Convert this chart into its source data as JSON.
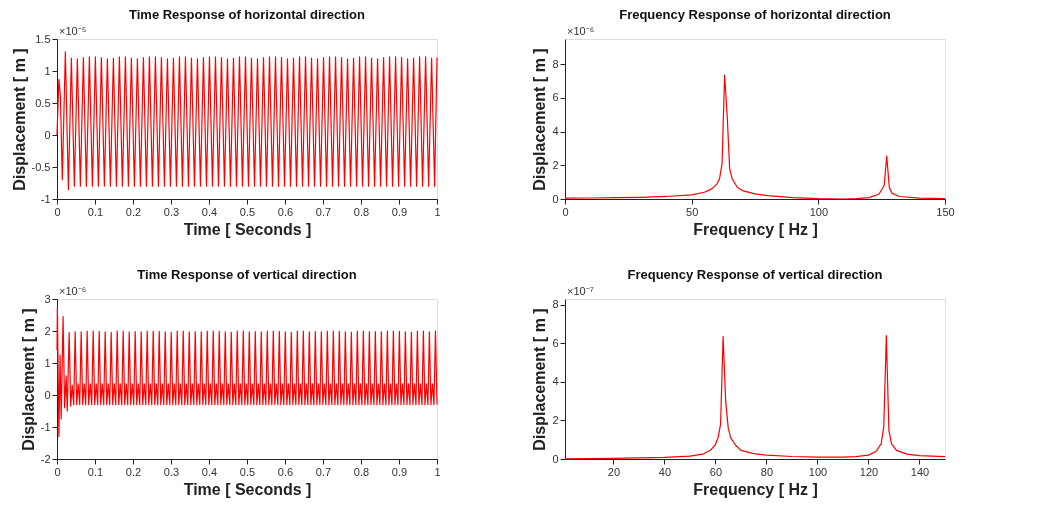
{
  "chart_data": [
    {
      "type": "line",
      "title": "Time Response of horizontal direction",
      "xlabel": "Time [ Seconds ]",
      "ylabel": "Displacement [ m ]",
      "annotations": [
        "×10⁻⁵"
      ],
      "xlim": [
        0,
        1
      ],
      "xticks": [
        0,
        0.1,
        0.2,
        0.3,
        0.4,
        0.5,
        0.6,
        0.7,
        0.8,
        0.9,
        1
      ],
      "ylim": [
        -1,
        1.5
      ],
      "yticks": [
        -1,
        -0.5,
        0,
        0.5,
        1,
        1.5
      ],
      "grid": false,
      "line_style": "solid",
      "series": [
        {
          "color": "#ff0000",
          "x": [
            0,
            0.005,
            0.009,
            0.014,
            0.022,
            0.03,
            0.0378,
            0.0457,
            0.0536,
            0.0615,
            0.0694,
            0.0773,
            0.0852,
            0.0931,
            0.101,
            0.1089,
            0.1168,
            0.1247,
            0.1326,
            0.1405,
            0.1484,
            0.1563,
            0.1642,
            0.1721,
            0.18,
            0.1879,
            0.1958,
            0.2037,
            0.2116,
            0.2195,
            0.2274,
            0.2353,
            0.2432,
            0.2511,
            0.259,
            0.2669,
            0.2748,
            0.2827,
            0.2906,
            0.2985,
            0.3064,
            0.3143,
            0.3222,
            0.3301,
            0.338,
            0.3459,
            0.3538,
            0.3617,
            0.3696,
            0.3775,
            0.3854,
            0.3933,
            0.4012,
            0.4091,
            0.417,
            0.4249,
            0.4328,
            0.4407,
            0.4486,
            0.4565,
            0.4644,
            0.4723,
            0.4802,
            0.4881,
            0.496,
            0.5039,
            0.5118,
            0.5197,
            0.5276,
            0.5355,
            0.5434,
            0.5513,
            0.5592,
            0.5671,
            0.575,
            0.5829,
            0.5908,
            0.5987,
            0.6066,
            0.6145,
            0.6224,
            0.6303,
            0.6382,
            0.6461,
            0.654,
            0.6619,
            0.6698,
            0.6777,
            0.6856,
            0.6935,
            0.7014,
            0.7093,
            0.7172,
            0.7251,
            0.733,
            0.7409,
            0.7488,
            0.7567,
            0.7646,
            0.7725,
            0.7804,
            0.7883,
            0.7962,
            0.8041,
            0.812,
            0.8199,
            0.8278,
            0.8357,
            0.8436,
            0.8515,
            0.8594,
            0.8673,
            0.8752,
            0.8831,
            0.891,
            0.8989,
            0.9068,
            0.9147,
            0.9226,
            0.9305,
            0.9384,
            0.9463,
            0.9542,
            0.9621,
            0.97,
            0.9779,
            0.9858,
            0.9937,
            1
          ],
          "values": [
            0,
            0.87,
            0.6,
            -0.7,
            1.3,
            -0.85,
            1.2,
            -0.8,
            1.19,
            -0.8,
            1.21,
            -0.8,
            1.22,
            -0.8,
            1.22,
            -0.8,
            1.21,
            -0.8,
            1.19,
            -0.8,
            1.2,
            -0.8,
            1.22,
            -0.8,
            1.22,
            -0.8,
            1.2,
            -0.8,
            1.19,
            -0.8,
            1.21,
            -0.8,
            1.22,
            -0.8,
            1.22,
            -0.8,
            1.21,
            -0.8,
            1.19,
            -0.8,
            1.2,
            -0.8,
            1.22,
            -0.8,
            1.22,
            -0.8,
            1.2,
            -0.8,
            1.19,
            -0.8,
            1.21,
            -0.8,
            1.22,
            -0.8,
            1.22,
            -0.8,
            1.21,
            -0.8,
            1.19,
            -0.8,
            1.2,
            -0.8,
            1.22,
            -0.8,
            1.22,
            -0.8,
            1.2,
            -0.8,
            1.19,
            -0.8,
            1.21,
            -0.8,
            1.22,
            -0.8,
            1.22,
            -0.8,
            1.21,
            -0.8,
            1.19,
            -0.8,
            1.2,
            -0.8,
            1.22,
            -0.8,
            1.22,
            -0.8,
            1.2,
            -0.8,
            1.19,
            -0.8,
            1.21,
            -0.8,
            1.22,
            -0.8,
            1.22,
            -0.8,
            1.21,
            -0.8,
            1.19,
            -0.8,
            1.2,
            -0.8,
            1.22,
            -0.8,
            1.22,
            -0.8,
            1.2,
            -0.8,
            1.19,
            -0.8,
            1.21,
            -0.8,
            1.22,
            -0.8,
            1.22,
            -0.8,
            1.21,
            -0.8,
            1.19,
            -0.8,
            1.2,
            -0.8,
            1.22,
            -0.8,
            1.22,
            -0.8,
            1.2,
            -0.8,
            1.21
          ]
        }
      ]
    },
    {
      "type": "line",
      "title": "Frequency Response of horizontal direction",
      "xlabel": "Frequency [ Hz ]",
      "ylabel": "Displacement [ m ]",
      "annotations": [
        "×10⁻⁶"
      ],
      "xlim": [
        0,
        150
      ],
      "xticks": [
        0,
        50,
        100,
        150
      ],
      "ylim": [
        0,
        9.5
      ],
      "yticks": [
        0,
        2,
        4,
        6,
        8
      ],
      "grid": false,
      "line_style": "solid",
      "series": [
        {
          "color": "#ff0000",
          "x": [
            0,
            10,
            20,
            30,
            40,
            50,
            55,
            58,
            60,
            61,
            62,
            63,
            64,
            65,
            66,
            68,
            70,
            75,
            80,
            90,
            100,
            110,
            115,
            120,
            124,
            126,
            127,
            128,
            129,
            132,
            140,
            150
          ],
          "values": [
            0.05,
            0.06,
            0.08,
            0.1,
            0.15,
            0.25,
            0.4,
            0.6,
            0.9,
            1.2,
            2.1,
            7.35,
            5,
            1.8,
            1.2,
            0.7,
            0.5,
            0.3,
            0.2,
            0.08,
            0.02,
            0,
            0.02,
            0.08,
            0.3,
            0.8,
            2.55,
            0.7,
            0.35,
            0.15,
            0.05,
            0.02
          ]
        }
      ]
    },
    {
      "type": "line",
      "title": "Time Response of vertical direction",
      "xlabel": "Time [ Seconds ]",
      "ylabel": "Displacement [ m ]",
      "annotations": [
        "×10⁻⁶"
      ],
      "xlim": [
        0,
        1
      ],
      "xticks": [
        0,
        0.1,
        0.2,
        0.3,
        0.4,
        0.5,
        0.6,
        0.7,
        0.8,
        0.9,
        1
      ],
      "ylim": [
        -2,
        3
      ],
      "yticks": [
        -2,
        -1,
        0,
        1,
        2,
        3
      ],
      "grid": false,
      "line_style": "solid",
      "series": [
        {
          "color": "#ff0000",
          "x": [
            0,
            0.001,
            0.005,
            0.008,
            0.011,
            0.013,
            0.016,
            0.02,
            0.024,
            0.027,
            0.032,
            0.036,
            0.04,
            0.044,
            0.0478,
            0.0518,
            0.0558,
            0.0598,
            0.0636,
            0.0676,
            0.0716,
            0.0756,
            0.0794,
            0.0834,
            0.0874,
            0.0914,
            0.0952,
            0.0992,
            0.1032,
            0.1072,
            0.111,
            0.115,
            0.119,
            0.123,
            0.1268,
            0.1308,
            0.1348,
            0.1388,
            0.1426,
            0.1466,
            0.1506,
            0.1546,
            0.1584,
            0.1624,
            0.1664,
            0.1704,
            0.1742,
            0.1782,
            0.1822,
            0.1862,
            0.19,
            0.194,
            0.198,
            0.202,
            0.2058,
            0.2098,
            0.2138,
            0.2178,
            0.2216,
            0.2256,
            0.2296,
            0.2336,
            0.2374,
            0.2414,
            0.2454,
            0.2494,
            0.2532,
            0.2572,
            0.2612,
            0.2652,
            0.269,
            0.273,
            0.277,
            0.281,
            0.2848,
            0.2888,
            0.2928,
            0.2968,
            0.3006,
            0.3046,
            0.3086,
            0.3126,
            0.3164,
            0.3204,
            0.3244,
            0.3284,
            0.3322,
            0.3362,
            0.3402,
            0.3442,
            0.348,
            0.352,
            0.356,
            0.36,
            0.3638,
            0.3678,
            0.3718,
            0.3758,
            0.3796,
            0.3836,
            0.3876,
            0.3916,
            0.3954,
            0.3994,
            0.4034,
            0.4074,
            0.4112,
            0.4152,
            0.4192,
            0.4232,
            0.427,
            0.431,
            0.435,
            0.439,
            0.4428,
            0.4468,
            0.4508,
            0.4548,
            0.4586,
            0.4626,
            0.4666,
            0.4706,
            0.4744,
            0.4784,
            0.4824,
            0.4864,
            0.4902,
            0.4942,
            0.4982,
            0.5022,
            0.506,
            0.51,
            0.514,
            0.518,
            0.5218,
            0.5258,
            0.5298,
            0.5338,
            0.5376,
            0.5416,
            0.5456,
            0.5496,
            0.5534,
            0.5574,
            0.5614,
            0.5654,
            0.5692,
            0.5732,
            0.5772,
            0.5812,
            0.585,
            0.589,
            0.593,
            0.597,
            0.6008,
            0.6048,
            0.6088,
            0.6128,
            0.6166,
            0.6206,
            0.6246,
            0.6286,
            0.6324,
            0.6364,
            0.6404,
            0.6444,
            0.6482,
            0.6522,
            0.6562,
            0.6602,
            0.664,
            0.668,
            0.672,
            0.676,
            0.6798,
            0.6838,
            0.6878,
            0.6918,
            0.6956,
            0.6996,
            0.7036,
            0.7076,
            0.7114,
            0.7154,
            0.7194,
            0.7234,
            0.7272,
            0.7312,
            0.7352,
            0.7392,
            0.743,
            0.747,
            0.751,
            0.755,
            0.7588,
            0.7628,
            0.7668,
            0.7708,
            0.7746,
            0.7786,
            0.7826,
            0.7866,
            0.7904,
            0.7944,
            0.7984,
            0.8024,
            0.8062,
            0.8102,
            0.8142,
            0.8182,
            0.822,
            0.826,
            0.83,
            0.834,
            0.8378,
            0.8418,
            0.8458,
            0.8498,
            0.8536,
            0.8576,
            0.8616,
            0.8656,
            0.8694,
            0.8734,
            0.8774,
            0.8814,
            0.8852,
            0.8892,
            0.8932,
            0.8972,
            0.901,
            0.905,
            0.909,
            0.913,
            0.9168,
            0.9208,
            0.9248,
            0.9288,
            0.9326,
            0.9366,
            0.9406,
            0.9446,
            0.9484,
            0.9524,
            0.9564,
            0.9604,
            0.9642,
            0.9682,
            0.9722,
            0.9762,
            0.98,
            0.984,
            0.988,
            0.992,
            0.996,
            1
          ],
          "values": [
            1.4,
            2.75,
            -1.3,
            1.25,
            -0.75,
            0.55,
            2.45,
            -0.4,
            0.6,
            -0.5,
            1.95,
            -0.35,
            0.3,
            -0.3,
            1.98,
            -0.3,
            0.35,
            -0.3,
            1.97,
            -0.3,
            0.35,
            -0.3,
            2.0,
            -0.3,
            0.35,
            -0.3,
            2.0,
            -0.3,
            0.35,
            -0.3,
            1.99,
            -0.3,
            0.35,
            -0.3,
            1.97,
            -0.3,
            0.35,
            -0.3,
            1.96,
            -0.3,
            0.35,
            -0.3,
            2.0,
            -0.3,
            0.35,
            -0.3,
            2.0,
            -0.3,
            0.35,
            -0.3,
            1.97,
            -0.3,
            0.35,
            -0.3,
            1.98,
            -0.3,
            0.35,
            -0.3,
            1.97,
            -0.3,
            0.35,
            -0.3,
            2.0,
            -0.3,
            0.35,
            -0.3,
            2.0,
            -0.3,
            0.35,
            -0.3,
            1.99,
            -0.3,
            0.35,
            -0.3,
            1.97,
            -0.3,
            0.35,
            -0.3,
            1.96,
            -0.3,
            0.35,
            -0.3,
            2.0,
            -0.3,
            0.35,
            -0.3,
            2.0,
            -0.3,
            0.35,
            -0.3,
            1.97,
            -0.3,
            0.35,
            -0.3,
            1.98,
            -0.3,
            0.35,
            -0.3,
            1.97,
            -0.3,
            0.35,
            -0.3,
            2.0,
            -0.3,
            0.35,
            -0.3,
            2.0,
            -0.3,
            0.35,
            -0.3,
            1.99,
            -0.3,
            0.35,
            -0.3,
            1.97,
            -0.3,
            0.35,
            -0.3,
            1.96,
            -0.3,
            0.35,
            -0.3,
            2.0,
            -0.3,
            0.35,
            -0.3,
            2.0,
            -0.3,
            0.35,
            -0.3,
            1.97,
            -0.3,
            0.35,
            -0.3,
            1.98,
            -0.3,
            0.35,
            -0.3,
            1.97,
            -0.3,
            0.35,
            -0.3,
            2.0,
            -0.3,
            0.35,
            -0.3,
            2.0,
            -0.3,
            0.35,
            -0.3,
            1.99,
            -0.3,
            0.35,
            -0.3,
            1.97,
            -0.3,
            0.35,
            -0.3,
            1.96,
            -0.3,
            0.35,
            -0.3,
            2.0,
            -0.3,
            0.35,
            -0.3,
            2.0,
            -0.3,
            0.35,
            -0.3,
            1.97,
            -0.3,
            0.35,
            -0.3,
            1.98,
            -0.3,
            0.35,
            -0.3,
            1.97,
            -0.3,
            0.35,
            -0.3,
            2.0,
            -0.3,
            0.35,
            -0.3,
            2.0,
            -0.3,
            0.35,
            -0.3,
            1.99,
            -0.3,
            0.35,
            -0.3,
            1.97,
            -0.3,
            0.35,
            -0.3,
            1.96,
            -0.3,
            0.35,
            -0.3,
            2.0,
            -0.3,
            0.35,
            -0.3,
            2.0,
            -0.3,
            0.35,
            -0.3,
            1.97,
            -0.3,
            0.35,
            -0.3,
            1.98,
            -0.3,
            0.35,
            -0.3,
            1.97,
            -0.3,
            0.35,
            -0.3,
            2.0,
            -0.3,
            0.35,
            -0.3,
            2.0,
            -0.3,
            0.35,
            -0.3,
            1.99,
            -0.3,
            0.35,
            -0.3,
            1.97,
            -0.3,
            0.35,
            -0.3,
            1.96,
            -0.3,
            0.35,
            -0.3,
            2.0,
            -0.3,
            0.35,
            -0.3,
            2.0,
            -0.3,
            0.35,
            -0.3,
            1.97,
            -0.3,
            0.35,
            -0.3,
            2.0,
            -0.3
          ]
        }
      ]
    },
    {
      "type": "line",
      "title": "Frequency Response of vertical direction",
      "xlabel": "Frequency [ Hz ]",
      "ylabel": "Displacement [ m ]",
      "annotations": [
        "×10⁻⁷"
      ],
      "xlim": [
        1,
        150
      ],
      "xticks": [
        20,
        40,
        60,
        80,
        100,
        120,
        140
      ],
      "ylim": [
        0,
        8.3
      ],
      "yticks": [
        0,
        2,
        4,
        6,
        8
      ],
      "grid": false,
      "line_style": "solid",
      "series": [
        {
          "color": "#ff0000",
          "x": [
            1,
            20,
            40,
            50,
            55,
            58,
            60,
            61,
            62,
            63,
            64,
            65,
            66,
            68,
            70,
            75,
            80,
            90,
            100,
            110,
            115,
            120,
            123,
            125,
            126,
            127,
            128,
            129,
            131,
            135,
            140,
            150
          ],
          "values": [
            0.01,
            0.03,
            0.08,
            0.15,
            0.25,
            0.45,
            0.75,
            1.1,
            1.8,
            6.35,
            3,
            1.6,
            1.1,
            0.7,
            0.45,
            0.28,
            0.2,
            0.13,
            0.1,
            0.1,
            0.12,
            0.2,
            0.4,
            0.8,
            1.7,
            6.4,
            1.5,
            0.8,
            0.45,
            0.25,
            0.18,
            0.12
          ]
        }
      ]
    }
  ]
}
